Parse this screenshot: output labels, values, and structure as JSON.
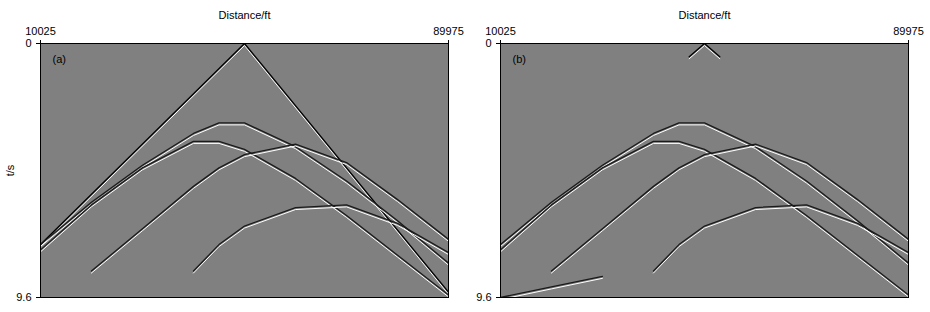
{
  "chart_data": [
    {
      "type": "line",
      "title": "(a)",
      "xlabel": "Distance/ft",
      "ylabel": "t/s",
      "xlim": [
        10025,
        89975
      ],
      "xticks": [
        10025,
        89975
      ],
      "ylim": [
        9.6,
        0
      ],
      "yticks": [
        0,
        9.6
      ],
      "series": [
        {
          "color": "#000000",
          "x": [
            10025,
            50000,
            89975
          ],
          "values": [
            7.6,
            0,
            9.4
          ]
        },
        {
          "color": "#1a1a1a",
          "x": [
            10025,
            20000,
            30000,
            40000,
            45000,
            50000,
            60000,
            70000,
            80000,
            89975
          ],
          "values": [
            7.6,
            6.0,
            4.6,
            3.4,
            3.0,
            3.0,
            3.9,
            5.2,
            6.7,
            8.3
          ]
        },
        {
          "color": "#1a1a1a",
          "x": [
            10025,
            20000,
            30000,
            40000,
            45000,
            50000,
            60000,
            70000,
            80000,
            89975
          ],
          "values": [
            7.8,
            6.1,
            4.7,
            3.7,
            3.7,
            4.0,
            5.1,
            6.5,
            8.0,
            9.5
          ]
        },
        {
          "color": "#1a1a1a",
          "x": [
            20000,
            30000,
            40000,
            45000,
            50000,
            60000,
            70000,
            80000,
            89975
          ],
          "values": [
            8.6,
            7.0,
            5.4,
            4.7,
            4.2,
            3.8,
            4.5,
            5.9,
            7.4
          ]
        },
        {
          "color": "#1a1a1a",
          "x": [
            40000,
            45000,
            50000,
            60000,
            70000,
            80000,
            89975
          ],
          "values": [
            8.6,
            7.6,
            6.9,
            6.2,
            6.1,
            6.8,
            7.9
          ]
        }
      ]
    },
    {
      "type": "line",
      "title": "(b)",
      "xlabel": "Distance/ft",
      "xlim": [
        10025,
        89975
      ],
      "xticks": [
        10025,
        89975
      ],
      "ylim": [
        9.6,
        0
      ],
      "yticks": [
        0,
        9.6
      ],
      "series": [
        {
          "color": "#000000",
          "x": [
            47000,
            50000,
            53000
          ],
          "values": [
            0.5,
            0,
            0.5
          ]
        },
        {
          "color": "#1a1a1a",
          "x": [
            10025,
            20000,
            30000,
            40000,
            45000,
            50000,
            60000,
            70000,
            80000,
            89975
          ],
          "values": [
            7.6,
            6.0,
            4.6,
            3.4,
            3.0,
            3.0,
            3.9,
            5.2,
            6.7,
            8.3
          ]
        },
        {
          "color": "#1a1a1a",
          "x": [
            10025,
            20000,
            30000,
            40000,
            45000,
            50000,
            60000,
            70000,
            80000,
            89975
          ],
          "values": [
            7.8,
            6.1,
            4.7,
            3.7,
            3.7,
            4.0,
            5.1,
            6.5,
            8.0,
            9.5
          ]
        },
        {
          "color": "#1a1a1a",
          "x": [
            20000,
            30000,
            40000,
            45000,
            50000,
            60000,
            70000,
            80000,
            89975
          ],
          "values": [
            8.6,
            7.0,
            5.4,
            4.7,
            4.2,
            3.8,
            4.5,
            5.9,
            7.4
          ]
        },
        {
          "color": "#1a1a1a",
          "x": [
            40000,
            45000,
            50000,
            60000,
            70000,
            80000,
            89975
          ],
          "values": [
            8.6,
            7.6,
            6.9,
            6.2,
            6.1,
            6.8,
            7.9
          ]
        },
        {
          "color": "#1a1a1a",
          "x": [
            10025,
            20000,
            30000
          ],
          "values": [
            9.6,
            9.2,
            8.8
          ]
        }
      ]
    }
  ]
}
